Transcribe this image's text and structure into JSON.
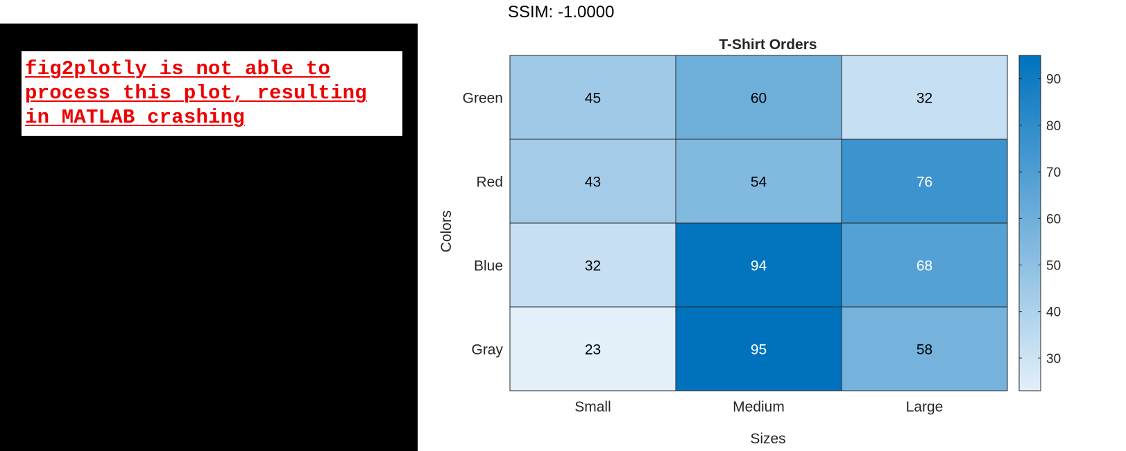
{
  "ssim_label": "SSIM: -1.0000",
  "error_message": "fig2plotly is not able to\nprocess this plot, resulting\nin MATLAB crashing",
  "chart_data": {
    "type": "heatmap",
    "title": "T-Shirt Orders",
    "xlabel": "Sizes",
    "ylabel": "Colors",
    "x_categories": [
      "Small",
      "Medium",
      "Large"
    ],
    "y_categories": [
      "Green",
      "Red",
      "Blue",
      "Gray"
    ],
    "values": [
      [
        45,
        60,
        32
      ],
      [
        43,
        54,
        76
      ],
      [
        32,
        94,
        68
      ],
      [
        23,
        95,
        58
      ]
    ],
    "colorbar": {
      "min": 23,
      "max": 95,
      "ticks": [
        30,
        40,
        50,
        60,
        70,
        80,
        90
      ],
      "color_low": "#e3eff9",
      "color_high": "#0072bd"
    },
    "grid": false,
    "legend": "colorbar-right"
  }
}
